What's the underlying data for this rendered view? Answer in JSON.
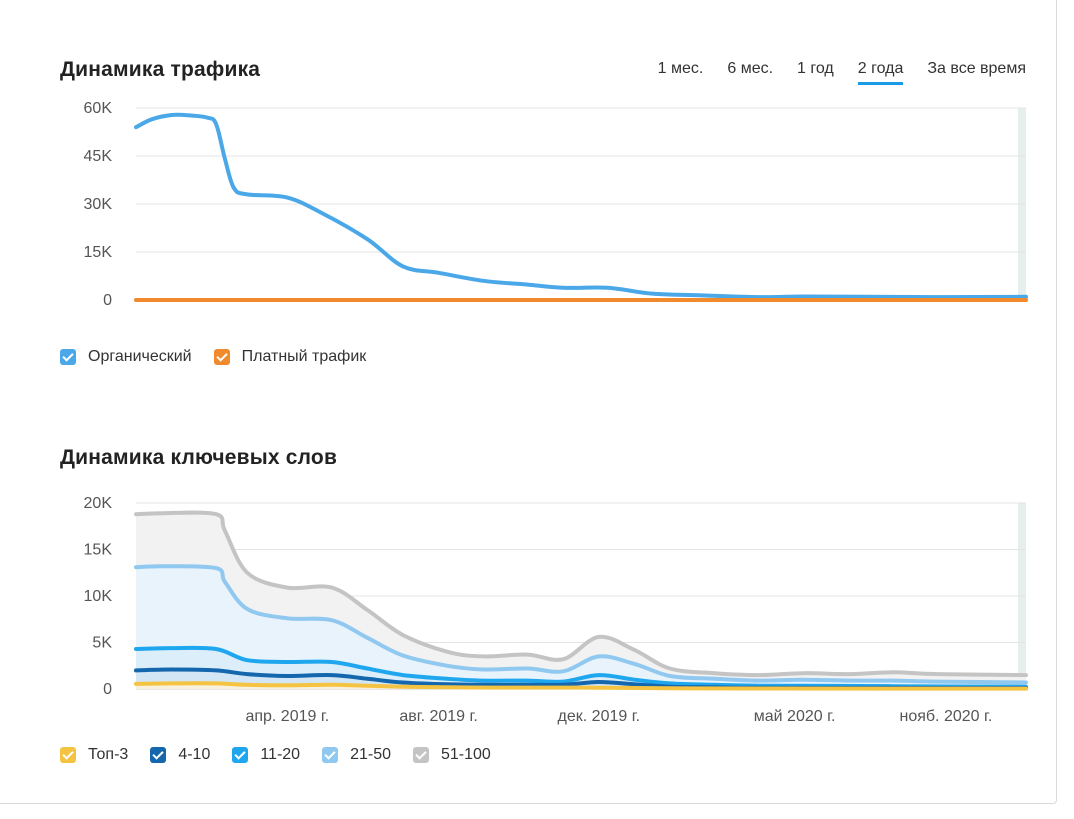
{
  "traffic": {
    "title": "Динамика трафика",
    "periods": [
      {
        "label": "1 мес.",
        "active": false
      },
      {
        "label": "6 мес.",
        "active": false
      },
      {
        "label": "1 год",
        "active": false
      },
      {
        "label": "2 года",
        "active": true
      },
      {
        "label": "За все время",
        "active": false
      }
    ],
    "legend": [
      {
        "label": "Органический",
        "color": "#4aa8e8"
      },
      {
        "label": "Платный трафик",
        "color": "#f08a2c"
      }
    ]
  },
  "keywords": {
    "title": "Динамика ключевых слов",
    "legend": [
      {
        "label": "Топ-3",
        "color": "#f5c342"
      },
      {
        "label": "4-10",
        "color": "#1466ad"
      },
      {
        "label": "11-20",
        "color": "#1ea7ee"
      },
      {
        "label": "21-50",
        "color": "#90c8f0"
      },
      {
        "label": "51-100",
        "color": "#c4c4c4"
      }
    ]
  },
  "chart_data": [
    {
      "type": "line",
      "title": "Динамика трафика",
      "x_range": [
        "2018-12",
        "2021-01"
      ],
      "ylim": [
        0,
        60000
      ],
      "yticks": [
        "60K",
        "45K",
        "30K",
        "15K",
        "0"
      ],
      "grid": true,
      "series": [
        {
          "name": "Органический",
          "color": "#4aa8e8",
          "points": [
            [
              0,
              54000
            ],
            [
              0.018,
              56500
            ],
            [
              0.04,
              57800
            ],
            [
              0.06,
              57700
            ],
            [
              0.08,
              57000
            ],
            [
              0.09,
              55000
            ],
            [
              0.1,
              44000
            ],
            [
              0.11,
              35000
            ],
            [
              0.125,
              33000
            ],
            [
              0.17,
              32000
            ],
            [
              0.21,
              27000
            ],
            [
              0.26,
              19000
            ],
            [
              0.3,
              10500
            ],
            [
              0.34,
              8500
            ],
            [
              0.39,
              6000
            ],
            [
              0.44,
              4800
            ],
            [
              0.48,
              3800
            ],
            [
              0.53,
              3800
            ],
            [
              0.58,
              2000
            ],
            [
              0.64,
              1400
            ],
            [
              0.7,
              900
            ],
            [
              0.75,
              1100
            ],
            [
              0.82,
              1000
            ],
            [
              0.9,
              900
            ],
            [
              1,
              1000
            ]
          ]
        },
        {
          "name": "Платный трафик",
          "color": "#f08a2c",
          "points": [
            [
              0,
              0
            ],
            [
              1,
              0
            ]
          ]
        }
      ]
    },
    {
      "type": "area",
      "title": "Динамика ключевых слов",
      "x_range": [
        "2018-12",
        "2021-01"
      ],
      "ylim": [
        0,
        20000
      ],
      "yticks": [
        "20K",
        "15K",
        "10K",
        "5K",
        "0"
      ],
      "xticks": [
        {
          "label": "апр. 2019 г.",
          "pos": 0.17
        },
        {
          "label": "авг. 2019 г.",
          "pos": 0.34
        },
        {
          "label": "дек. 2019 г.",
          "pos": 0.52
        },
        {
          "label": "май 2020 г.",
          "pos": 0.74
        },
        {
          "label": "нояб. 2020 г.",
          "pos": 0.91
        }
      ],
      "grid": true,
      "series": [
        {
          "name": "51-100",
          "color": "#c4c4c4",
          "fill": "#f2f2f2",
          "points": [
            [
              0,
              18800
            ],
            [
              0.03,
              18900
            ],
            [
              0.09,
              18800
            ],
            [
              0.1,
              17000
            ],
            [
              0.125,
              12500
            ],
            [
              0.17,
              10900
            ],
            [
              0.22,
              10900
            ],
            [
              0.26,
              8500
            ],
            [
              0.3,
              5800
            ],
            [
              0.35,
              4000
            ],
            [
              0.39,
              3500
            ],
            [
              0.44,
              3700
            ],
            [
              0.48,
              3200
            ],
            [
              0.52,
              5600
            ],
            [
              0.56,
              4200
            ],
            [
              0.6,
              2200
            ],
            [
              0.65,
              1700
            ],
            [
              0.7,
              1500
            ],
            [
              0.75,
              1700
            ],
            [
              0.8,
              1600
            ],
            [
              0.85,
              1800
            ],
            [
              0.9,
              1600
            ],
            [
              1,
              1500
            ]
          ]
        },
        {
          "name": "21-50",
          "color": "#90c8f0",
          "fill": "#e8f3fc",
          "points": [
            [
              0,
              13100
            ],
            [
              0.03,
              13200
            ],
            [
              0.09,
              13000
            ],
            [
              0.1,
              11500
            ],
            [
              0.125,
              8600
            ],
            [
              0.17,
              7600
            ],
            [
              0.22,
              7400
            ],
            [
              0.26,
              5500
            ],
            [
              0.3,
              3600
            ],
            [
              0.35,
              2500
            ],
            [
              0.39,
              2100
            ],
            [
              0.44,
              2200
            ],
            [
              0.48,
              1900
            ],
            [
              0.52,
              3500
            ],
            [
              0.56,
              2700
            ],
            [
              0.6,
              1400
            ],
            [
              0.65,
              1100
            ],
            [
              0.7,
              900
            ],
            [
              0.75,
              1000
            ],
            [
              0.8,
              900
            ],
            [
              0.85,
              900
            ],
            [
              0.9,
              800
            ],
            [
              1,
              700
            ]
          ]
        },
        {
          "name": "11-20",
          "color": "#1ea7ee",
          "fill": "#ddeefb",
          "points": [
            [
              0,
              4300
            ],
            [
              0.04,
              4400
            ],
            [
              0.09,
              4300
            ],
            [
              0.125,
              3100
            ],
            [
              0.17,
              2900
            ],
            [
              0.22,
              2900
            ],
            [
              0.26,
              2200
            ],
            [
              0.3,
              1500
            ],
            [
              0.35,
              1100
            ],
            [
              0.39,
              900
            ],
            [
              0.44,
              900
            ],
            [
              0.48,
              800
            ],
            [
              0.52,
              1500
            ],
            [
              0.56,
              1000
            ],
            [
              0.6,
              600
            ],
            [
              0.65,
              450
            ],
            [
              0.7,
              350
            ],
            [
              0.75,
              350
            ],
            [
              0.85,
              300
            ],
            [
              1,
              250
            ]
          ]
        },
        {
          "name": "4-10",
          "color": "#1466ad",
          "fill": "#d3e6f6",
          "points": [
            [
              0,
              2000
            ],
            [
              0.04,
              2100
            ],
            [
              0.09,
              2000
            ],
            [
              0.125,
              1600
            ],
            [
              0.17,
              1400
            ],
            [
              0.22,
              1500
            ],
            [
              0.26,
              1100
            ],
            [
              0.3,
              700
            ],
            [
              0.35,
              500
            ],
            [
              0.39,
              450
            ],
            [
              0.44,
              450
            ],
            [
              0.48,
              450
            ],
            [
              0.52,
              750
            ],
            [
              0.56,
              500
            ],
            [
              0.6,
              250
            ],
            [
              0.65,
              180
            ],
            [
              0.7,
              130
            ],
            [
              0.8,
              120
            ],
            [
              1,
              100
            ]
          ]
        },
        {
          "name": "Топ-3",
          "color": "#f5c342",
          "fill": "#f7f1de",
          "points": [
            [
              0,
              550
            ],
            [
              0.04,
              600
            ],
            [
              0.09,
              600
            ],
            [
              0.125,
              450
            ],
            [
              0.17,
              400
            ],
            [
              0.22,
              450
            ],
            [
              0.26,
              350
            ],
            [
              0.3,
              250
            ],
            [
              0.35,
              180
            ],
            [
              0.4,
              150
            ],
            [
              0.5,
              150
            ],
            [
              0.6,
              80
            ],
            [
              0.7,
              50
            ],
            [
              1,
              40
            ]
          ]
        }
      ]
    }
  ]
}
